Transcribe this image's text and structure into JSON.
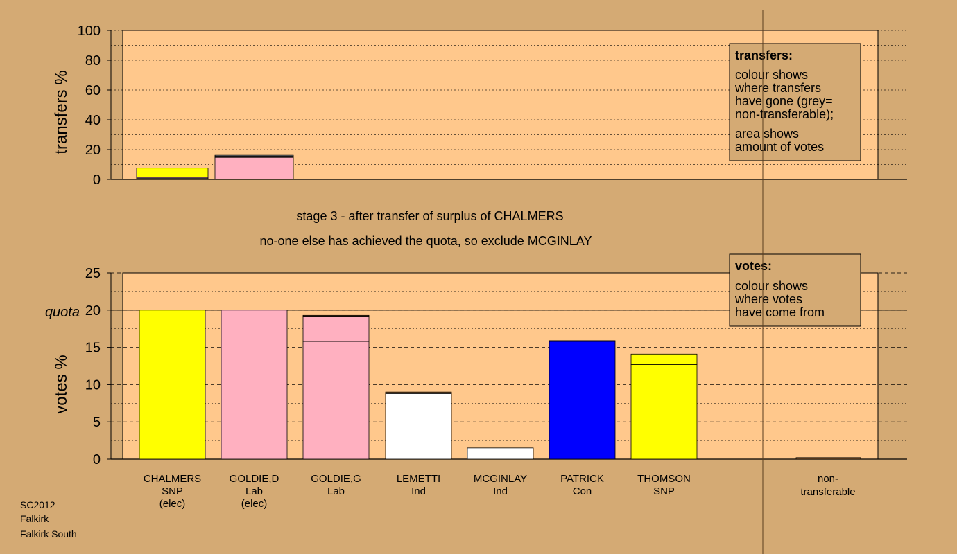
{
  "colors": {
    "background": "#d4aa74",
    "plot_area": "#ffc88c",
    "SNP": "#ffff00",
    "Lab": "#ffb0c0",
    "Ind": "#ffffff",
    "Con": "#0000ff",
    "grey": "#b0b0b0",
    "dark_band": "#8b5a2b"
  },
  "chart_data": [
    {
      "type": "bar",
      "ylabel": "transfers %",
      "ylim": [
        0,
        100
      ],
      "yticks": [
        0,
        20,
        40,
        60,
        80,
        100
      ],
      "categories": [
        "CHALMERS",
        "GOLDIE,D"
      ],
      "stacks": [
        {
          "category": "CHALMERS",
          "segments": [
            {
              "from": "Ind",
              "value": 0.8,
              "color": "#ffffff"
            },
            {
              "from": "Lab",
              "value": 0.6,
              "color": "#ffb0c0"
            },
            {
              "from": "SNP",
              "value": 6.2,
              "color": "#ffff00"
            }
          ]
        },
        {
          "category": "GOLDIE,D",
          "segments": [
            {
              "from": "Lab",
              "value": 14.8,
              "color": "#ffb0c0"
            },
            {
              "from": "Ind",
              "value": 0.8,
              "color": "#ffffff"
            },
            {
              "from": "grey",
              "value": 0.6,
              "color": "#b0b0b0"
            }
          ]
        }
      ],
      "legend": {
        "title": "transfers:",
        "lines_1": [
          "colour shows",
          "where transfers",
          "have gone (grey=",
          "non-transferable);"
        ],
        "lines_2": [
          "area shows",
          "amount of votes"
        ],
        "position": "top-right"
      }
    },
    {
      "type": "bar",
      "ylabel": "votes %",
      "ylim": [
        0,
        25
      ],
      "yticks": [
        0,
        5,
        10,
        15,
        20,
        25
      ],
      "quota": {
        "value": 20,
        "label": "quota"
      },
      "categories": [
        "CHALMERS",
        "GOLDIE,D",
        "GOLDIE,G",
        "LEMETTI",
        "MCGINLAY",
        "PATRICK",
        "THOMSON",
        "non-transferable"
      ],
      "stacks": [
        {
          "category": "CHALMERS",
          "segments": [
            {
              "value": 20.0,
              "color": "#ffff00"
            }
          ]
        },
        {
          "category": "GOLDIE,D",
          "segments": [
            {
              "value": 20.0,
              "color": "#ffb0c0"
            }
          ]
        },
        {
          "category": "GOLDIE,G",
          "segments": [
            {
              "value": 15.8,
              "color": "#ffb0c0"
            },
            {
              "value": 3.3,
              "color": "#ffb0c0"
            },
            {
              "value": 0.2,
              "color": "#8b5a2b"
            }
          ]
        },
        {
          "category": "LEMETTI",
          "segments": [
            {
              "value": 8.8,
              "color": "#ffffff"
            },
            {
              "value": 0.2,
              "color": "#8b5a2b"
            }
          ]
        },
        {
          "category": "MCGINLAY",
          "segments": [
            {
              "value": 1.5,
              "color": "#ffffff"
            }
          ]
        },
        {
          "category": "PATRICK",
          "segments": [
            {
              "value": 15.8,
              "color": "#0000ff"
            },
            {
              "value": 0.1,
              "color": "#8b5a2b"
            }
          ]
        },
        {
          "category": "THOMSON",
          "segments": [
            {
              "value": 12.7,
              "color": "#ffff00"
            },
            {
              "value": 1.4,
              "color": "#ffff00"
            }
          ]
        },
        {
          "category": "non-transferable",
          "segments": [
            {
              "value": 0.2,
              "color": "#8b5a2b"
            }
          ]
        }
      ],
      "legend": {
        "title": "votes:",
        "lines_1": [
          "colour shows",
          "where votes",
          "have come from"
        ],
        "position": "top-right"
      }
    }
  ],
  "titles": {
    "line1": "stage 3 - after transfer of surplus of CHALMERS",
    "line2": "no-one else has achieved the quota, so exclude MCGINLAY"
  },
  "candidates": [
    {
      "name": "CHALMERS",
      "party": "SNP",
      "note": "(elec)"
    },
    {
      "name": "GOLDIE,D",
      "party": "Lab",
      "note": "(elec)"
    },
    {
      "name": "GOLDIE,G",
      "party": "Lab",
      "note": ""
    },
    {
      "name": "LEMETTI",
      "party": "Ind",
      "note": ""
    },
    {
      "name": "MCGINLAY",
      "party": "Ind",
      "note": ""
    },
    {
      "name": "PATRICK",
      "party": "Con",
      "note": ""
    },
    {
      "name": "THOMSON",
      "party": "SNP",
      "note": ""
    }
  ],
  "nontransferable_label": [
    "non-",
    "transferable"
  ],
  "footer": {
    "election": "SC2012",
    "council": "Falkirk",
    "ward": "Falkirk South"
  }
}
